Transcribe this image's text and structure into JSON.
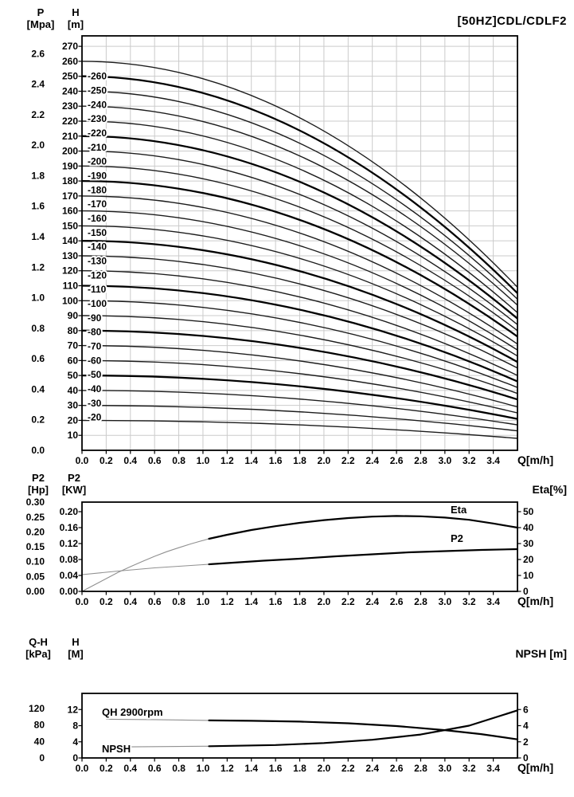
{
  "title": "[50HZ]CDL/CDLF2",
  "chart_data": [
    {
      "type": "line",
      "title": "[50HZ]CDL/CDLF2",
      "xlabel": "Q[m/h]",
      "xlim": [
        0,
        3.6
      ],
      "x_ticks": [
        "0.0",
        "0.2",
        "0.4",
        "0.6",
        "0.8",
        "1.0",
        "1.2",
        "1.4",
        "1.6",
        "1.8",
        "2.0",
        "2.2",
        "2.4",
        "2.6",
        "2.8",
        "3.0",
        "3.2",
        "3.4"
      ],
      "grid": true,
      "ylim_m": [
        0,
        277
      ],
      "left_axes": [
        {
          "name": "P",
          "unit": "[Mpa]",
          "m_per_mpa": 101.97,
          "ticks": [
            "0.0",
            "0.2",
            "0.4",
            "0.6",
            "0.8",
            "1.0",
            "1.2",
            "1.4",
            "1.6",
            "1.8",
            "2.0",
            "2.2",
            "2.4",
            "2.6"
          ]
        },
        {
          "name": "H",
          "unit": "[m]",
          "ticks": [
            10,
            20,
            30,
            40,
            50,
            60,
            70,
            80,
            90,
            100,
            110,
            120,
            130,
            140,
            150,
            160,
            170,
            180,
            190,
            200,
            210,
            220,
            230,
            240,
            250,
            260,
            270
          ]
        }
      ],
      "series_note": "head curves H(Q), h0 = shutoff head [m] at Q=0, h_end = head [m] at Q=3.6 m/h, quadratic droop",
      "series": [
        {
          "label": "-260",
          "h0": 260,
          "h_end": 109,
          "bold": false
        },
        {
          "label": "-250",
          "h0": 250,
          "h_end": 105,
          "bold": true
        },
        {
          "label": "-240",
          "h0": 240,
          "h_end": 101,
          "bold": false
        },
        {
          "label": "-230",
          "h0": 230,
          "h_end": 97,
          "bold": false
        },
        {
          "label": "-220",
          "h0": 220,
          "h_end": 92,
          "bold": false
        },
        {
          "label": "-210",
          "h0": 210,
          "h_end": 88,
          "bold": true
        },
        {
          "label": "-200",
          "h0": 200,
          "h_end": 84,
          "bold": false
        },
        {
          "label": "-190",
          "h0": 190,
          "h_end": 80,
          "bold": false
        },
        {
          "label": "-180",
          "h0": 180,
          "h_end": 76,
          "bold": true
        },
        {
          "label": "-170",
          "h0": 170,
          "h_end": 71,
          "bold": false
        },
        {
          "label": "-160",
          "h0": 160,
          "h_end": 67,
          "bold": false
        },
        {
          "label": "-150",
          "h0": 150,
          "h_end": 63,
          "bold": false
        },
        {
          "label": "-140",
          "h0": 140,
          "h_end": 59,
          "bold": true
        },
        {
          "label": "-130",
          "h0": 130,
          "h_end": 55,
          "bold": false
        },
        {
          "label": "-120",
          "h0": 120,
          "h_end": 50,
          "bold": false
        },
        {
          "label": "-110",
          "h0": 110,
          "h_end": 46,
          "bold": true
        },
        {
          "label": "-100",
          "h0": 100,
          "h_end": 42,
          "bold": false
        },
        {
          "label": "-90",
          "h0": 90,
          "h_end": 38,
          "bold": false
        },
        {
          "label": "-80",
          "h0": 80,
          "h_end": 34,
          "bold": true
        },
        {
          "label": "-70",
          "h0": 70,
          "h_end": 29,
          "bold": false
        },
        {
          "label": "-60",
          "h0": 60,
          "h_end": 25,
          "bold": false
        },
        {
          "label": "-50",
          "h0": 50,
          "h_end": 21,
          "bold": true
        },
        {
          "label": "-40",
          "h0": 40,
          "h_end": 17,
          "bold": false
        },
        {
          "label": "-30",
          "h0": 30,
          "h_end": 13,
          "bold": false
        },
        {
          "label": "-20",
          "h0": 20,
          "h_end": 8,
          "bold": false
        }
      ]
    },
    {
      "type": "line",
      "xlabel": "Q[m/h]",
      "x_ticks": [
        "0.0",
        "0.2",
        "0.4",
        "0.6",
        "0.8",
        "1.0",
        "1.2",
        "1.4",
        "1.6",
        "1.8",
        "2.0",
        "2.2",
        "2.4",
        "2.6",
        "2.8",
        "3.0",
        "3.2",
        "3.4"
      ],
      "grid": false,
      "ylim_kw": [
        0,
        0.224
      ],
      "ylim_eta": [
        0,
        56
      ],
      "left_axes": [
        {
          "name": "P2",
          "unit": "[Hp]",
          "ticks": [
            "0.00",
            "0.05",
            "0.10",
            "0.15",
            "0.20",
            "0.25",
            "0.30"
          ]
        },
        {
          "name": "P2",
          "unit": "[KW]",
          "ticks": [
            "0.00",
            "0.04",
            "0.08",
            "0.12",
            "0.16",
            "0.20"
          ]
        }
      ],
      "right_axis": {
        "label": "Eta[%]",
        "ticks": [
          0,
          10,
          20,
          30,
          40,
          50
        ]
      },
      "series": [
        {
          "name": "Eta",
          "axis": "eta",
          "bold_from": 1.05,
          "points": [
            [
              0,
              0
            ],
            [
              0.1,
              4
            ],
            [
              0.2,
              8
            ],
            [
              0.3,
              12
            ],
            [
              0.4,
              15.5
            ],
            [
              0.5,
              18.8
            ],
            [
              0.6,
              22
            ],
            [
              0.7,
              24.9
            ],
            [
              0.8,
              27.4
            ],
            [
              0.9,
              29.8
            ],
            [
              1.05,
              33
            ],
            [
              1.2,
              35.5
            ],
            [
              1.4,
              38.5
            ],
            [
              1.6,
              40.9
            ],
            [
              1.8,
              43
            ],
            [
              2.0,
              44.7
            ],
            [
              2.2,
              46
            ],
            [
              2.4,
              46.9
            ],
            [
              2.6,
              47.3
            ],
            [
              2.8,
              47.1
            ],
            [
              3.0,
              46.3
            ],
            [
              3.2,
              44.9
            ],
            [
              3.4,
              42.6
            ],
            [
              3.6,
              40
            ]
          ]
        },
        {
          "name": "P2",
          "axis": "kw",
          "bold_from": 1.05,
          "points": [
            [
              0,
              0.042
            ],
            [
              0.3,
              0.051
            ],
            [
              0.6,
              0.059
            ],
            [
              0.9,
              0.065
            ],
            [
              1.05,
              0.068
            ],
            [
              1.2,
              0.071
            ],
            [
              1.5,
              0.077
            ],
            [
              1.8,
              0.082
            ],
            [
              2.1,
              0.088
            ],
            [
              2.4,
              0.093
            ],
            [
              2.7,
              0.098
            ],
            [
              3.0,
              0.101
            ],
            [
              3.3,
              0.104
            ],
            [
              3.6,
              0.106
            ]
          ]
        }
      ]
    },
    {
      "type": "line",
      "xlabel": "Q[m/h]",
      "x_ticks": [
        "0.0",
        "0.2",
        "0.4",
        "0.6",
        "0.8",
        "1.0",
        "1.2",
        "1.4",
        "1.6",
        "1.8",
        "2.0",
        "2.2",
        "2.4",
        "2.6",
        "2.8",
        "3.0",
        "3.2",
        "3.4"
      ],
      "grid": false,
      "ylim_m": [
        0,
        16
      ],
      "ylim_npsh": [
        0,
        8
      ],
      "left_axes": [
        {
          "name": "Q-H",
          "unit": "[kPa]",
          "ticks": [
            0,
            40,
            80,
            120
          ]
        },
        {
          "name": "H",
          "unit": "[M]",
          "ticks": [
            0,
            4,
            8,
            12
          ]
        }
      ],
      "right_axis": {
        "label": "NPSH [m]",
        "ticks": [
          0,
          2,
          4,
          6
        ]
      },
      "series": [
        {
          "name": "QH 2900rpm",
          "axis": "m",
          "bold_from": 1.05,
          "points": [
            [
              0.2,
              9.6
            ],
            [
              0.6,
              9.5
            ],
            [
              1.05,
              9.3
            ],
            [
              1.4,
              9.2
            ],
            [
              1.8,
              9.0
            ],
            [
              2.2,
              8.6
            ],
            [
              2.6,
              7.9
            ],
            [
              3.0,
              6.9
            ],
            [
              3.3,
              5.9
            ],
            [
              3.6,
              4.6
            ]
          ]
        },
        {
          "name": "NPSH",
          "axis": "npsh",
          "bold_from": 1.05,
          "points": [
            [
              0.2,
              1.35
            ],
            [
              0.6,
              1.4
            ],
            [
              1.05,
              1.45
            ],
            [
              1.6,
              1.6
            ],
            [
              2.0,
              1.85
            ],
            [
              2.4,
              2.25
            ],
            [
              2.8,
              2.9
            ],
            [
              3.2,
              4.0
            ],
            [
              3.6,
              5.9
            ]
          ]
        }
      ]
    }
  ]
}
